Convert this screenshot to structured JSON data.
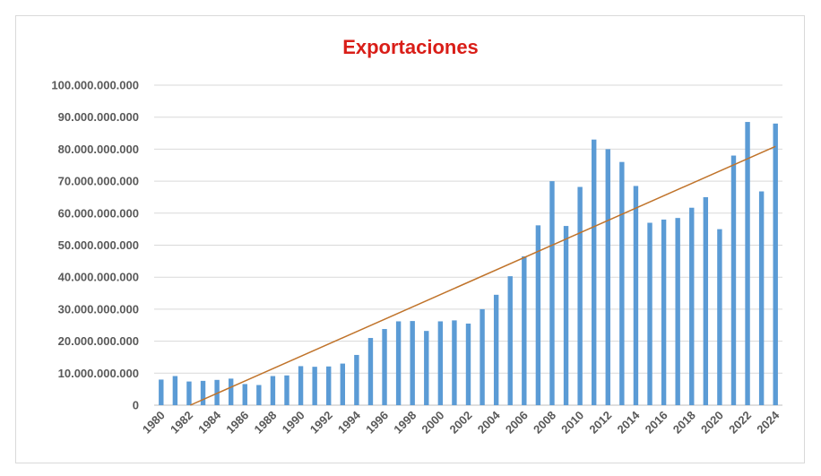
{
  "chart_data": {
    "type": "bar",
    "title": "Exportaciones",
    "xlabel": "",
    "ylabel": "",
    "ylim": [
      0,
      100000000000
    ],
    "y_ticks": [
      0,
      10000000000,
      20000000000,
      30000000000,
      40000000000,
      50000000000,
      60000000000,
      70000000000,
      80000000000,
      90000000000,
      100000000000
    ],
    "y_tick_labels": [
      "0",
      "10.000.000.000",
      "20.000.000.000",
      "30.000.000.000",
      "40.000.000.000",
      "50.000.000.000",
      "60.000.000.000",
      "70.000.000.000",
      "80.000.000.000",
      "90.000.000.000",
      "100.000.000.000"
    ],
    "grid": true,
    "categories": [
      "1980",
      "1981",
      "1982",
      "1983",
      "1984",
      "1985",
      "1986",
      "1987",
      "1988",
      "1989",
      "1990",
      "1991",
      "1992",
      "1993",
      "1994",
      "1995",
      "1996",
      "1997",
      "1998",
      "1999",
      "2000",
      "2001",
      "2002",
      "2003",
      "2004",
      "2005",
      "2006",
      "2007",
      "2008",
      "2009",
      "2010",
      "2011",
      "2012",
      "2013",
      "2014",
      "2015",
      "2016",
      "2017",
      "2018",
      "2019",
      "2020",
      "2021",
      "2022",
      "2023",
      "2024"
    ],
    "x_tick_labels": [
      "1980",
      "1982",
      "1984",
      "1986",
      "1988",
      "1990",
      "1992",
      "1994",
      "1996",
      "1998",
      "2000",
      "2002",
      "2004",
      "2006",
      "2008",
      "2010",
      "2012",
      "2014",
      "2016",
      "2018",
      "2020",
      "2022",
      "2024"
    ],
    "series": [
      {
        "values": [
          8000000000,
          9100000000,
          7400000000,
          7600000000,
          7900000000,
          8300000000,
          6600000000,
          6300000000,
          9100000000,
          9300000000,
          12200000000,
          12000000000,
          12100000000,
          13000000000,
          15700000000,
          21000000000,
          23800000000,
          26200000000,
          26300000000,
          23200000000,
          26200000000,
          26500000000,
          25500000000,
          30000000000,
          34500000000,
          40300000000,
          46500000000,
          56200000000,
          70000000000,
          56000000000,
          68200000000,
          83000000000,
          80000000000,
          76000000000,
          68500000000,
          57000000000,
          58000000000,
          58500000000,
          61700000000,
          65000000000,
          55000000000,
          78000000000,
          88500000000,
          66800000000,
          88000000000
        ],
        "color": "#5b9bd5"
      }
    ],
    "trendline": {
      "type": "linear",
      "color": "#c0732a"
    }
  }
}
